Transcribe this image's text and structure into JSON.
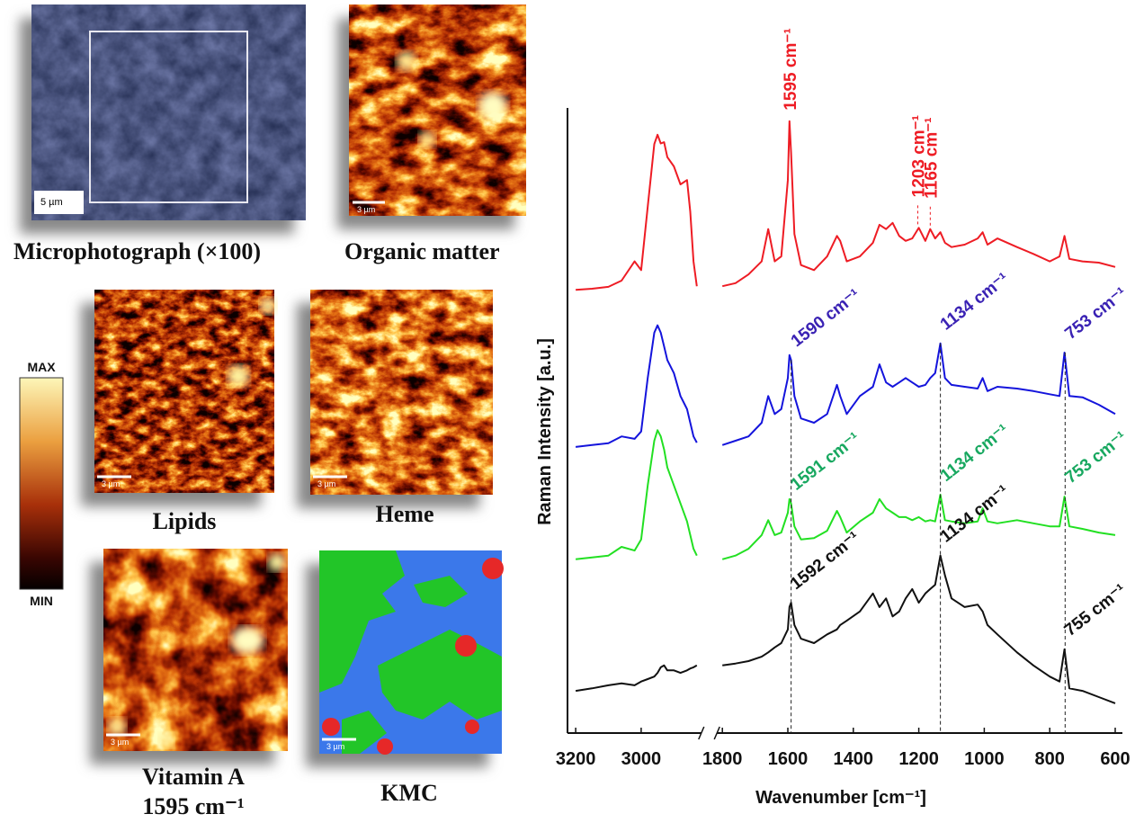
{
  "panels": [
    {
      "label": "Microphotograph (×100)",
      "scale_bar": "5 µm"
    },
    {
      "label": "Organic matter",
      "scale_bar": "3 µm"
    },
    {
      "label": "Lipids",
      "scale_bar": "3 µm"
    },
    {
      "label": "Heme",
      "scale_bar": "3 µm"
    },
    {
      "label": "Vitamin A",
      "sublabel": "1595 cm⁻¹",
      "scale_bar": "3 µm"
    },
    {
      "label": "KMC",
      "scale_bar": "3 µm"
    }
  ],
  "colorbar": {
    "max": "MAX",
    "min": "MIN"
  },
  "chart_data": {
    "type": "line",
    "xlabel": "Wavenumber [cm⁻¹]",
    "ylabel": "Raman Intensity [a.u.]",
    "xlim": [
      3225,
      600
    ],
    "xbreak": [
      2830,
      1800
    ],
    "ylim": [
      0,
      100
    ],
    "xticks": [
      3200,
      3000,
      1800,
      1600,
      1400,
      1200,
      1000,
      800,
      600
    ],
    "x": [
      3200,
      3150,
      3100,
      3060,
      3020,
      3000,
      2980,
      2960,
      2950,
      2940,
      2930,
      2920,
      2900,
      2880,
      2860,
      2850,
      2840,
      2830,
      2000,
      1800,
      1760,
      1720,
      1680,
      1660,
      1640,
      1620,
      1600,
      1595,
      1590,
      1580,
      1560,
      1520,
      1480,
      1450,
      1440,
      1420,
      1380,
      1340,
      1320,
      1300,
      1280,
      1260,
      1240,
      1220,
      1200,
      1180,
      1165,
      1150,
      1134,
      1120,
      1100,
      1060,
      1020,
      1005,
      990,
      960,
      900,
      850,
      800,
      770,
      755,
      740,
      700,
      650,
      600
    ],
    "series": [
      {
        "color": "#ee1c24",
        "label_color": "#ee1c24",
        "values": [
          71.4,
          71.6,
          71.9,
          72.9,
          76,
          74.6,
          84.8,
          94.9,
          96.4,
          95,
          95.2,
          92.8,
          91.3,
          88.4,
          89.1,
          84,
          76,
          72,
          null,
          72,
          72.5,
          73.9,
          76,
          81.2,
          76,
          76.8,
          89.1,
          98.6,
          93.5,
          80.4,
          75.4,
          74.6,
          76.8,
          80.1,
          79.3,
          76,
          76.8,
          79,
          81.9,
          81.2,
          82.2,
          80.1,
          79.3,
          79.7,
          81.4,
          79.3,
          81.2,
          79.7,
          80.7,
          79,
          78.3,
          78.7,
          79.7,
          80.7,
          78.7,
          79.7,
          78.3,
          77.2,
          76,
          76.8,
          80.1,
          76.4,
          76,
          75.8,
          75.1
        ]
      },
      {
        "color": "#1414dc",
        "label_color": "#3a22b4",
        "values": [
          46.1,
          46.4,
          46.7,
          47.8,
          47.4,
          48.6,
          57.2,
          64.5,
          65.7,
          64.5,
          62.3,
          60.1,
          58,
          54.3,
          52.2,
          50,
          47.8,
          46.8,
          null,
          46.4,
          47.1,
          47.8,
          50,
          54.3,
          51.4,
          52.2,
          57.2,
          60.9,
          60.1,
          54.3,
          50.7,
          50,
          51.4,
          56.1,
          54.3,
          51.4,
          54.3,
          55.8,
          59.4,
          56.5,
          55.8,
          56.5,
          57.2,
          56.5,
          55.8,
          56.1,
          57.2,
          58,
          62.8,
          57.2,
          56.1,
          55.8,
          55.5,
          57.2,
          55.1,
          55.8,
          55.5,
          55.1,
          54.6,
          54.3,
          61.3,
          54.3,
          54.1,
          52.9,
          51.4
        ]
      },
      {
        "color": "#22e022",
        "label_color": "#18a860",
        "values": [
          28,
          28.3,
          28.6,
          30,
          29.4,
          31.2,
          39.9,
          47.1,
          48.8,
          47.8,
          45.7,
          42.8,
          39.9,
          37,
          34.1,
          31.9,
          29.7,
          28.6,
          null,
          28,
          28.6,
          29.7,
          31.9,
          34.3,
          31.9,
          32.3,
          35.5,
          37.7,
          37,
          33.3,
          31.2,
          31.4,
          32.6,
          35.8,
          34.8,
          32.3,
          34.1,
          35.5,
          37.7,
          36.2,
          35.5,
          34.8,
          34.8,
          34.3,
          34.8,
          34.1,
          34.3,
          34.1,
          38.4,
          34.3,
          34.1,
          33.8,
          34.1,
          36.2,
          34.1,
          33.8,
          34.3,
          33.8,
          33.3,
          33.3,
          38.1,
          33.3,
          32.9,
          32.3,
          31.9
        ]
      },
      {
        "color": "#111111",
        "label_color": "#111111",
        "values": [
          6.8,
          7.2,
          7.7,
          8,
          7.7,
          8.3,
          8.7,
          9.1,
          9.7,
          10.6,
          10.9,
          10.1,
          10.1,
          9.7,
          10.1,
          10.4,
          10.6,
          10.9,
          null,
          10.9,
          11.2,
          11.6,
          12.3,
          13,
          13.8,
          14.5,
          16.7,
          20.3,
          21,
          17.4,
          15.2,
          14.5,
          15.9,
          16.7,
          17.4,
          18.1,
          19.6,
          22.5,
          20.3,
          21.7,
          18.8,
          19.6,
          21.7,
          23.2,
          21,
          22.5,
          23.2,
          23.9,
          28.6,
          25.4,
          21.7,
          20.3,
          20.7,
          19.6,
          17.4,
          15.9,
          13,
          10.9,
          9.1,
          8.3,
          13.5,
          7.2,
          6.8,
          5.8,
          4.8
        ]
      }
    ],
    "annotations": [
      {
        "text": "1595 cm⁻¹",
        "x": 1595,
        "series": 0
      },
      {
        "text": "1203 cm⁻¹",
        "x": 1203,
        "series": 0
      },
      {
        "text": "1165 cm⁻¹",
        "x": 1165,
        "series": 0
      },
      {
        "text": "1590 cm⁻¹",
        "x": 1590,
        "series": 1
      },
      {
        "text": "1134 cm⁻¹",
        "x": 1134,
        "series": 1
      },
      {
        "text": "753 cm⁻¹",
        "x": 753,
        "series": 1
      },
      {
        "text": "1591 cm⁻¹",
        "x": 1591,
        "series": 2
      },
      {
        "text": "1134 cm⁻¹",
        "x": 1134,
        "series": 2
      },
      {
        "text": "753 cm⁻¹",
        "x": 753,
        "series": 2
      },
      {
        "text": "1592 cm⁻¹",
        "x": 1592,
        "series": 3
      },
      {
        "text": "1134 cm⁻¹",
        "x": 1134,
        "series": 3
      },
      {
        "text": "755 cm⁻¹",
        "x": 755,
        "series": 3
      }
    ]
  }
}
